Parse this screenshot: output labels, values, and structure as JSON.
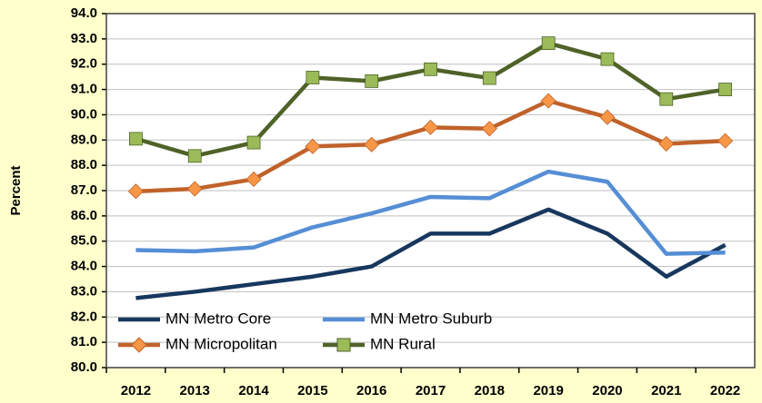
{
  "chart_data": {
    "type": "line",
    "y_label": "Percent",
    "categories": [
      "2012",
      "2013",
      "2014",
      "2015",
      "2016",
      "2017",
      "2018",
      "2019",
      "2020",
      "2021",
      "2022"
    ],
    "series": [
      {
        "name": "MN Metro Core",
        "color": "#17375e",
        "marker": null,
        "values": [
          82.75,
          83.0,
          83.3,
          83.6,
          84.0,
          85.3,
          85.3,
          86.25,
          85.3,
          83.6,
          84.85
        ]
      },
      {
        "name": "MN Metro Suburb",
        "color": "#558ed5",
        "marker": null,
        "values": [
          84.65,
          84.6,
          84.75,
          85.55,
          86.1,
          86.75,
          86.7,
          87.75,
          87.35,
          84.5,
          84.55
        ]
      },
      {
        "name": "MN Micropolitan",
        "color": "#c0622a",
        "marker": "diamond",
        "marker_color": "#f79646",
        "values": [
          86.97,
          87.07,
          87.45,
          88.75,
          88.82,
          89.5,
          89.45,
          90.55,
          89.9,
          88.85,
          88.97
        ]
      },
      {
        "name": "MN Rural",
        "color": "#4f6228",
        "marker": "square",
        "marker_color": "#9bbb59",
        "values": [
          89.05,
          88.37,
          88.9,
          91.47,
          91.33,
          91.8,
          91.45,
          92.83,
          92.2,
          90.62,
          91.0
        ]
      }
    ],
    "ylim": [
      80,
      94
    ],
    "yticks": [
      {
        "value": 80,
        "label": "80.0"
      },
      {
        "value": 81,
        "label": "81.0"
      },
      {
        "value": 82,
        "label": "82.0"
      },
      {
        "value": 83,
        "label": "83.0"
      },
      {
        "value": 84,
        "label": "84.0"
      },
      {
        "value": 85,
        "label": "85.0"
      },
      {
        "value": 86,
        "label": "86.0"
      },
      {
        "value": 87,
        "label": "87.0"
      },
      {
        "value": 88,
        "label": "88.0"
      },
      {
        "value": 89,
        "label": "89.0"
      },
      {
        "value": 90,
        "label": "90.0"
      },
      {
        "value": 91,
        "label": "91.0"
      },
      {
        "value": 92,
        "label": "92.0"
      },
      {
        "value": 93,
        "label": "93.0"
      },
      {
        "value": 94,
        "label": "94.0"
      }
    ],
    "grid": true,
    "legend": "bottom-left"
  }
}
